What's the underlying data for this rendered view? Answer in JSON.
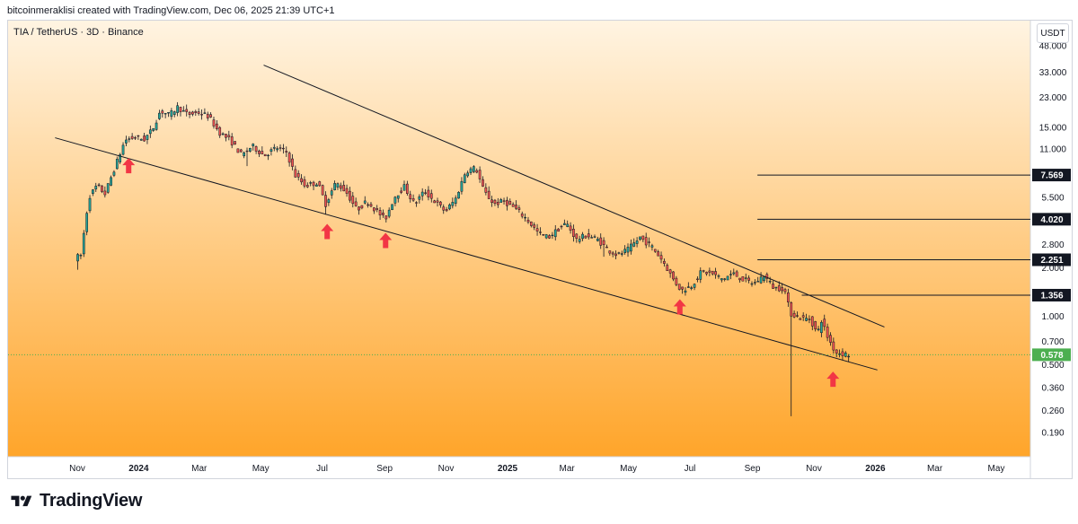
{
  "header": {
    "caption": "bitcoinmeraklisi created with TradingView.com, Dec 06, 2025 21:39 UTC+1"
  },
  "symbol_line": "TIA / TetherUS · 3D · Binance",
  "unit_button": "USDT",
  "brand": {
    "name": "TradingView",
    "icon": "tradingview-logo-icon"
  },
  "colors": {
    "up": "#26a69a",
    "down": "#ef5350",
    "bg_top": "#fff4e2",
    "bg_bottom": "#ffa52a",
    "arrow": "#f23645"
  },
  "chart_data": {
    "type": "candlestick",
    "scale": "log",
    "ylim": [
      0.165,
      52
    ],
    "price_ticks": [
      "48.000",
      "33.000",
      "23.000",
      "15.000",
      "11.000",
      "5.500",
      "2.800",
      "2.000",
      "1.000",
      "0.700",
      "0.500",
      "0.360",
      "0.260",
      "0.190"
    ],
    "time_labels": [
      "Nov",
      "2024",
      "Mar",
      "May",
      "Jul",
      "Sep",
      "Nov",
      "2025",
      "Mar",
      "May",
      "Jul",
      "Sep",
      "Nov",
      "2026",
      "Mar",
      "May"
    ],
    "time_label_dates": [
      "2023-11-01",
      "2024-01-01",
      "2024-03-01",
      "2024-05-01",
      "2024-07-01",
      "2024-09-01",
      "2024-11-01",
      "2025-01-01",
      "2025-03-01",
      "2025-05-01",
      "2025-07-01",
      "2025-09-01",
      "2025-11-01",
      "2026-01-01",
      "2026-03-01",
      "2026-05-01"
    ],
    "price_path": [
      [
        "2023-10-31",
        2.3
      ],
      [
        "2023-11-06",
        2.4
      ],
      [
        "2023-11-14",
        5.5
      ],
      [
        "2023-11-22",
        6.5
      ],
      [
        "2023-11-30",
        5.8
      ],
      [
        "2023-12-10",
        8.5
      ],
      [
        "2023-12-20",
        12.5
      ],
      [
        "2023-12-30",
        13.0
      ],
      [
        "2024-01-08",
        12.6
      ],
      [
        "2024-01-16",
        14.5
      ],
      [
        "2024-01-24",
        19.0
      ],
      [
        "2024-02-02",
        17.8
      ],
      [
        "2024-02-10",
        20.0
      ],
      [
        "2024-02-20",
        18.0
      ],
      [
        "2024-03-02",
        18.5
      ],
      [
        "2024-03-12",
        17.5
      ],
      [
        "2024-03-22",
        14.0
      ],
      [
        "2024-04-02",
        12.5
      ],
      [
        "2024-04-14",
        10.0
      ],
      [
        "2024-04-24",
        11.5
      ],
      [
        "2024-05-06",
        10.0
      ],
      [
        "2024-05-18",
        11.2
      ],
      [
        "2024-05-28",
        10.5
      ],
      [
        "2024-06-06",
        7.5
      ],
      [
        "2024-06-16",
        6.5
      ],
      [
        "2024-06-28",
        6.8
      ],
      [
        "2024-07-06",
        5.0
      ],
      [
        "2024-07-16",
        6.8
      ],
      [
        "2024-07-26",
        6.0
      ],
      [
        "2024-08-06",
        4.6
      ],
      [
        "2024-08-16",
        5.2
      ],
      [
        "2024-08-26",
        4.5
      ],
      [
        "2024-09-03",
        4.0
      ],
      [
        "2024-09-12",
        5.5
      ],
      [
        "2024-09-22",
        6.4
      ],
      [
        "2024-10-02",
        5.0
      ],
      [
        "2024-10-12",
        6.0
      ],
      [
        "2024-10-22",
        5.2
      ],
      [
        "2024-11-02",
        4.5
      ],
      [
        "2024-11-12",
        5.4
      ],
      [
        "2024-11-22",
        8.0
      ],
      [
        "2024-12-02",
        8.4
      ],
      [
        "2024-12-10",
        6.0
      ],
      [
        "2024-12-20",
        5.0
      ],
      [
        "2024-12-30",
        5.2
      ],
      [
        "2025-01-10",
        4.7
      ],
      [
        "2025-01-22",
        4.0
      ],
      [
        "2025-02-02",
        3.3
      ],
      [
        "2025-02-12",
        3.1
      ],
      [
        "2025-02-22",
        3.5
      ],
      [
        "2025-03-02",
        3.8
      ],
      [
        "2025-03-12",
        3.0
      ],
      [
        "2025-03-22",
        3.2
      ],
      [
        "2025-04-02",
        3.0
      ],
      [
        "2025-04-12",
        2.6
      ],
      [
        "2025-04-22",
        2.4
      ],
      [
        "2025-05-02",
        2.6
      ],
      [
        "2025-05-14",
        3.1
      ],
      [
        "2025-05-26",
        2.7
      ],
      [
        "2025-06-06",
        2.2
      ],
      [
        "2025-06-16",
        1.7
      ],
      [
        "2025-06-24",
        1.45
      ],
      [
        "2025-07-04",
        1.55
      ],
      [
        "2025-07-14",
        1.9
      ],
      [
        "2025-07-24",
        1.85
      ],
      [
        "2025-08-04",
        1.7
      ],
      [
        "2025-08-14",
        1.85
      ],
      [
        "2025-08-24",
        1.7
      ],
      [
        "2025-09-04",
        1.6
      ],
      [
        "2025-09-14",
        1.8
      ],
      [
        "2025-09-24",
        1.5
      ],
      [
        "2025-10-04",
        1.5
      ],
      [
        "2025-10-10",
        1.05
      ],
      [
        "2025-10-20",
        0.98
      ],
      [
        "2025-10-30",
        0.96
      ],
      [
        "2025-11-06",
        0.78
      ],
      [
        "2025-11-10",
        0.95
      ],
      [
        "2025-11-16",
        0.75
      ],
      [
        "2025-11-24",
        0.6
      ],
      [
        "2025-12-06",
        0.578
      ]
    ],
    "wicks": [
      [
        "2025-10-10",
        0.24
      ],
      [
        "2023-10-31",
        1.95
      ],
      [
        "2024-07-05",
        4.3
      ],
      [
        "2024-04-18",
        8.6
      ],
      [
        "2025-04-07",
        2.35
      ]
    ],
    "last_price": {
      "value": 0.578,
      "label": "0.578",
      "date": "2025-12-06"
    },
    "trendlines": [
      {
        "from": [
          "2024-05-04",
          36.5
        ],
        "to": [
          "2026-01-10",
          0.86
        ]
      },
      {
        "from": [
          "2023-10-10",
          12.9
        ],
        "to": [
          "2026-01-03",
          0.465
        ]
      }
    ],
    "horizontal_levels": [
      {
        "value": 7.569,
        "label": "7.569",
        "from_date": "2025-09-06"
      },
      {
        "value": 4.02,
        "label": "4.020",
        "from_date": "2025-09-06"
      },
      {
        "value": 2.251,
        "label": "2.251",
        "from_date": "2025-09-06"
      },
      {
        "value": 1.356,
        "label": "1.356",
        "from_date": "2025-10-20"
      }
    ],
    "arrows": [
      {
        "date": "2023-12-22",
        "price": 8.6
      },
      {
        "date": "2024-07-06",
        "price": 3.35
      },
      {
        "date": "2024-09-02",
        "price": 2.95
      },
      {
        "date": "2025-06-21",
        "price": 1.14
      },
      {
        "date": "2025-11-20",
        "price": 0.405
      }
    ]
  }
}
